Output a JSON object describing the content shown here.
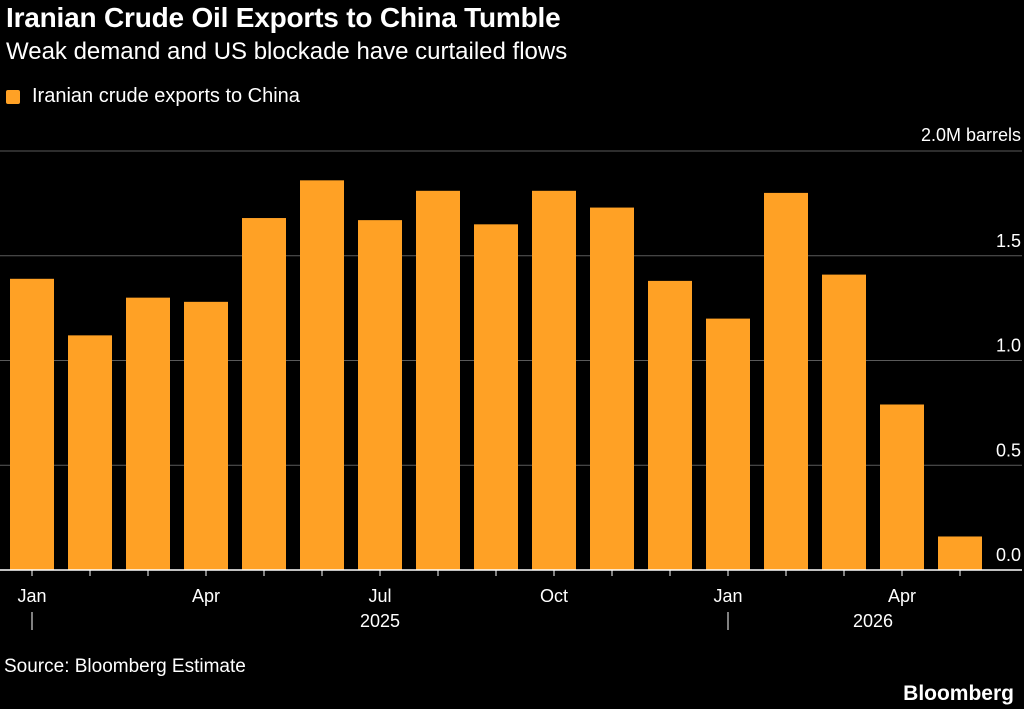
{
  "chart_data": {
    "type": "bar",
    "title": "Iranian Crude Oil Exports to China Tumble",
    "subtitle": "Weak demand and US blockade have curtailed flows",
    "series": [
      {
        "name": "Iranian crude exports to China",
        "color": "#ffa125",
        "values": [
          1.39,
          1.12,
          1.3,
          1.28,
          1.68,
          1.86,
          1.67,
          1.81,
          1.65,
          1.81,
          1.73,
          1.38,
          1.2,
          1.8,
          1.41,
          0.79,
          0.16
        ]
      }
    ],
    "months": [
      "2025-01",
      "2025-02",
      "2025-03",
      "2025-04",
      "2025-05",
      "2025-06",
      "2025-07",
      "2025-08",
      "2025-09",
      "2025-10",
      "2025-11",
      "2025-12",
      "2026-01",
      "2026-02",
      "2026-03",
      "2026-04",
      "2026-05"
    ],
    "x_tick_labels": [
      {
        "index": 0,
        "label": "Jan"
      },
      {
        "index": 3,
        "label": "Apr"
      },
      {
        "index": 6,
        "label": "Jul"
      },
      {
        "index": 9,
        "label": "Oct"
      },
      {
        "index": 12,
        "label": "Jan"
      },
      {
        "index": 15,
        "label": "Apr"
      }
    ],
    "year_labels": [
      {
        "index": 6,
        "label": "2025"
      },
      {
        "index": 14.5,
        "label": "2026"
      }
    ],
    "year_dividers": [
      0,
      12
    ],
    "y_ticks": [
      {
        "value": 2.0,
        "label": "2.0M barrels"
      },
      {
        "value": 1.5,
        "label": "1.5"
      },
      {
        "value": 1.0,
        "label": "1.0"
      },
      {
        "value": 0.5,
        "label": "0.5"
      },
      {
        "value": 0.0,
        "label": "0.0"
      }
    ],
    "ylim": [
      0,
      2.0
    ],
    "grid": true,
    "legend_position": "top-left"
  },
  "source": "Source: Bloomberg Estimate",
  "brand": "Bloomberg"
}
